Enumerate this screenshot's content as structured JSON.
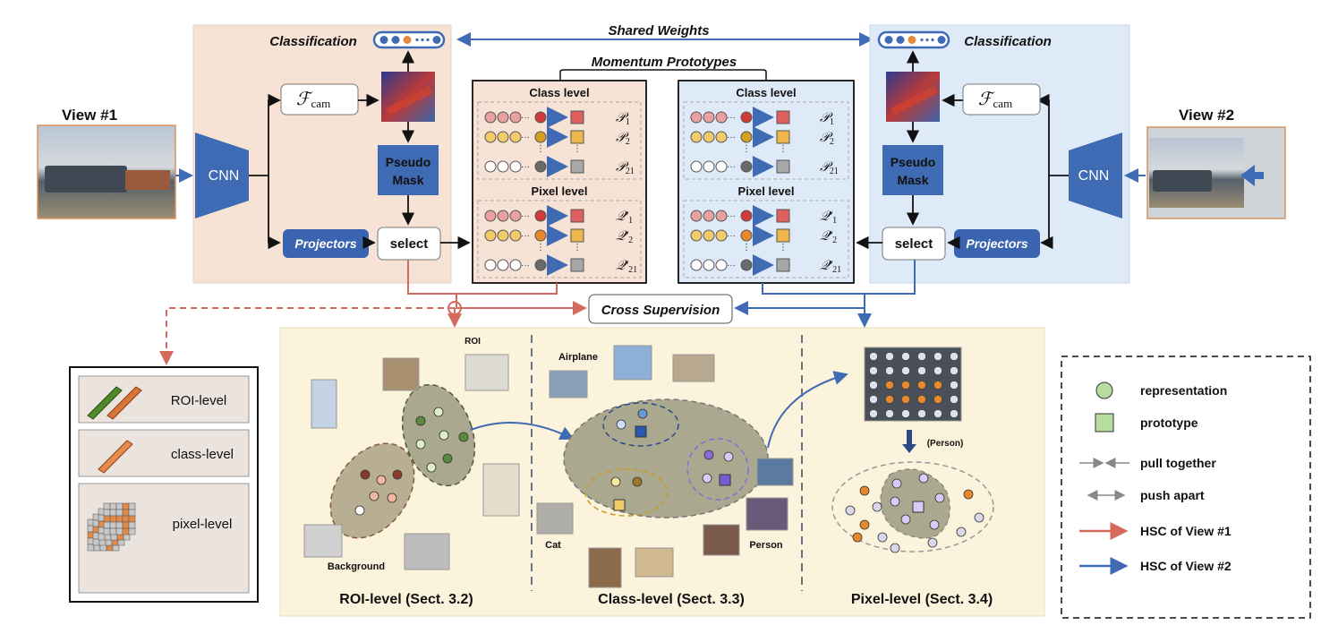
{
  "colors": {
    "view1_bg": "#f7e3d6",
    "view2_bg": "#deeaf7",
    "cnn_blue": "#3e6bb3",
    "hsc_view1": "#d46a5e",
    "hsc_view2": "#3e6bb3",
    "panel_bg": "#fbf3dc",
    "projector_blue": "#3a63b0"
  },
  "view1": {
    "label": "View #1",
    "cnn": "CNN",
    "classification": "Classification",
    "fcam": "ℱ",
    "fcam_sub": "cam",
    "pseudo1": "Pseudo",
    "pseudo2": "Mask",
    "projectors": "Projectors",
    "select": "select"
  },
  "view2": {
    "label": "View #2",
    "cnn": "CNN",
    "classification": "Classification",
    "fcam": "ℱ",
    "fcam_sub": "cam",
    "pseudo1": "Pseudo",
    "pseudo2": "Mask",
    "projectors": "Projectors",
    "select": "select"
  },
  "shared_weights": "Shared Weights",
  "momentum_prototypes": "Momentum Prototypes",
  "prototypes_left": {
    "class_level": "Class level",
    "pixel_level": "Pixel level",
    "p1": "𝒫",
    "p1_sub": "1",
    "p2": "𝒫",
    "p2_sub": "2",
    "p21": "𝒫",
    "p21_sub": "21",
    "q1": "𝒬′",
    "q1_sub": "1",
    "q2": "𝒬′",
    "q2_sub": "2",
    "q21": "𝒬′",
    "q21_sub": "21"
  },
  "prototypes_right": {
    "class_level": "Class level",
    "pixel_level": "Pixel level",
    "p1": "𝒫",
    "p1_sub": "1",
    "p2": "𝒫",
    "p2_sub": "2",
    "p21": "𝒫",
    "p21_sub": "21",
    "q1": "𝒬′",
    "q1_sub": "1",
    "q2": "𝒬′",
    "q2_sub": "2",
    "q21": "𝒬′",
    "q21_sub": "21"
  },
  "cross_supervision": "Cross Supervision",
  "levels_box": {
    "roi": "ROI-level",
    "class": "class-level",
    "pixel": "pixel-level"
  },
  "panel": {
    "roi_title": "ROI-level (Sect. 3.2)",
    "class_title": "Class-level (Sect. 3.3)",
    "pixel_title": "Pixel-level (Sect. 3.4)",
    "roi_label": "ROI",
    "background_label": "Background",
    "airplane_label": "Airplane",
    "cat_label": "Cat",
    "person_label": "Person",
    "person_paren": "(Person)"
  },
  "legend": {
    "representation": "representation",
    "prototype": "prototype",
    "pull": "pull together",
    "push": "push apart",
    "hsc1": "HSC of View #1",
    "hsc2": "HSC of View #2"
  }
}
